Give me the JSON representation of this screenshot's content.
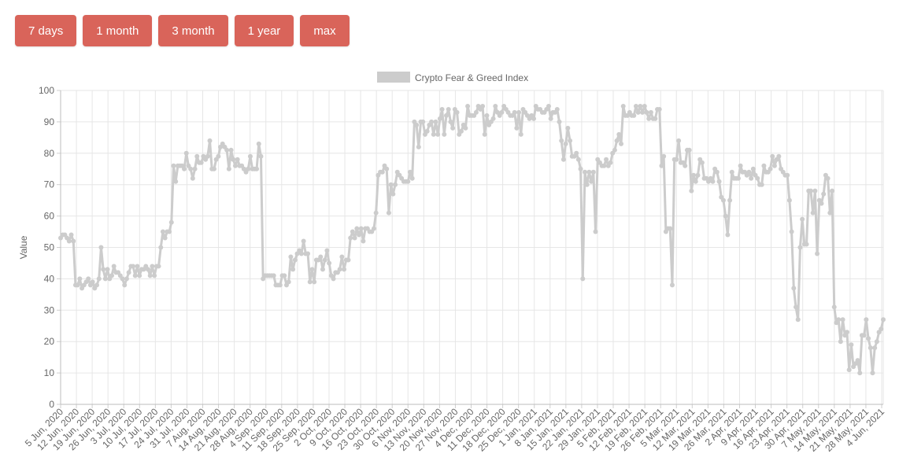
{
  "range_buttons": [
    {
      "label": "7 days"
    },
    {
      "label": "1 month"
    },
    {
      "label": "3 month"
    },
    {
      "label": "1 year"
    },
    {
      "label": "max"
    }
  ],
  "colors": {
    "button_bg": "#d9645a",
    "series_line": "#cccccc",
    "grid": "#e6e6e6",
    "text": "#666666"
  },
  "chart_data": {
    "type": "line",
    "legend": {
      "label": "Crypto Fear & Greed Index",
      "position": "top-center"
    },
    "ylabel": "Value",
    "ylim": [
      0,
      100
    ],
    "yticks": [
      0,
      10,
      20,
      30,
      40,
      50,
      60,
      70,
      80,
      90,
      100
    ],
    "grid": true,
    "x_start": "5 Jun, 2020",
    "x_end": "4 Jun, 2021",
    "xtick_labels": [
      "5 Jun, 2020",
      "12 Jun, 2020",
      "19 Jun, 2020",
      "26 Jun, 2020",
      "3 Jul, 2020",
      "10 Jul, 2020",
      "17 Jul, 2020",
      "24 Jul, 2020",
      "31 Jul, 2020",
      "7 Aug, 2020",
      "14 Aug, 2020",
      "21 Aug, 2020",
      "28 Aug, 2020",
      "4 Sep, 2020",
      "11 Sep, 2020",
      "18 Sep, 2020",
      "25 Sep, 2020",
      "2 Oct, 2020",
      "9 Oct, 2020",
      "16 Oct, 2020",
      "23 Oct, 2020",
      "30 Oct, 2020",
      "6 Nov, 2020",
      "13 Nov, 2020",
      "20 Nov, 2020",
      "27 Nov, 2020",
      "4 Dec, 2020",
      "11 Dec, 2020",
      "18 Dec, 2020",
      "25 Dec, 2020",
      "1 Jan, 2021",
      "8 Jan, 2021",
      "15 Jan, 2021",
      "22 Jan, 2021",
      "29 Jan, 2021",
      "5 Feb, 2021",
      "12 Feb, 2021",
      "19 Feb, 2021",
      "26 Feb, 2021",
      "5 Mar, 2021",
      "12 Mar, 2021",
      "19 Mar, 2021",
      "26 Mar, 2021",
      "2 Apr, 2021",
      "9 Apr, 2021",
      "16 Apr, 2021",
      "23 Apr, 2021",
      "30 Apr, 2021",
      "7 May, 2021",
      "14 May, 2021",
      "21 May, 2021",
      "28 May, 2021",
      "4 Jun, 2021"
    ],
    "series": [
      {
        "name": "Crypto Fear & Greed Index",
        "values": [
          53,
          54,
          54,
          53,
          52,
          54,
          52,
          38,
          38,
          40,
          37,
          38,
          39,
          40,
          38,
          39,
          37,
          38,
          40,
          50,
          43,
          40,
          43,
          40,
          41,
          44,
          42,
          42,
          41,
          40,
          38,
          40,
          42,
          44,
          44,
          41,
          44,
          41,
          43,
          43,
          44,
          43,
          41,
          44,
          41,
          44,
          44,
          50,
          55,
          53,
          55,
          55,
          58,
          76,
          71,
          76,
          76,
          76,
          75,
          80,
          76,
          75,
          72,
          75,
          79,
          77,
          77,
          79,
          78,
          79,
          84,
          75,
          75,
          78,
          79,
          82,
          83,
          82,
          81,
          75,
          81,
          78,
          76,
          78,
          76,
          76,
          75,
          74,
          75,
          79,
          75,
          75,
          75,
          83,
          79,
          40,
          41,
          41,
          41,
          41,
          41,
          38,
          38,
          38,
          41,
          41,
          38,
          39,
          47,
          43,
          46,
          48,
          49,
          48,
          52,
          48,
          48,
          39,
          43,
          39,
          46,
          46,
          47,
          43,
          46,
          49,
          45,
          41,
          40,
          42,
          42,
          43,
          47,
          43,
          46,
          46,
          53,
          55,
          53,
          56,
          54,
          56,
          52,
          56,
          56,
          55,
          55,
          56,
          61,
          73,
          74,
          74,
          76,
          75,
          61,
          70,
          67,
          70,
          74,
          73,
          72,
          71,
          71,
          71,
          74,
          72,
          90,
          89,
          82,
          90,
          90,
          86,
          87,
          89,
          90,
          86,
          90,
          86,
          91,
          94,
          86,
          92,
          94,
          90,
          88,
          94,
          93,
          86,
          87,
          89,
          88,
          95,
          92,
          92,
          92,
          93,
          95,
          94,
          95,
          86,
          92,
          89,
          90,
          91,
          95,
          93,
          92,
          93,
          95,
          94,
          93,
          92,
          92,
          93,
          88,
          93,
          86,
          94,
          93,
          92,
          91,
          92,
          91,
          95,
          94,
          94,
          93,
          93,
          94,
          95,
          91,
          93,
          93,
          94,
          90,
          84,
          78,
          83,
          88,
          84,
          79,
          79,
          80,
          78,
          75,
          40,
          74,
          70,
          74,
          71,
          74,
          55,
          78,
          77,
          76,
          76,
          78,
          76,
          77,
          80,
          81,
          84,
          86,
          83,
          95,
          92,
          92,
          93,
          92,
          92,
          95,
          93,
          95,
          93,
          95,
          93,
          91,
          93,
          91,
          91,
          94,
          94,
          76,
          79,
          55,
          56,
          56,
          38,
          78,
          78,
          84,
          77,
          77,
          76,
          81,
          81,
          68,
          73,
          71,
          73,
          78,
          77,
          72,
          72,
          71,
          72,
          71,
          75,
          74,
          71,
          66,
          65,
          60,
          54,
          65,
          74,
          72,
          72,
          72,
          76,
          74,
          74,
          73,
          74,
          72,
          75,
          73,
          72,
          70,
          70,
          76,
          74,
          74,
          75,
          79,
          76,
          78,
          79,
          75,
          74,
          73,
          73,
          65,
          55,
          37,
          31,
          27,
          50,
          59,
          51,
          51,
          68,
          68,
          61,
          68,
          48,
          65,
          64,
          67,
          73,
          72,
          61,
          68,
          31,
          26,
          27,
          20,
          27,
          22,
          23,
          11,
          19,
          12,
          13,
          14,
          10,
          22,
          22,
          27,
          21,
          18,
          10,
          18,
          20,
          23,
          24,
          27
        ]
      }
    ]
  }
}
